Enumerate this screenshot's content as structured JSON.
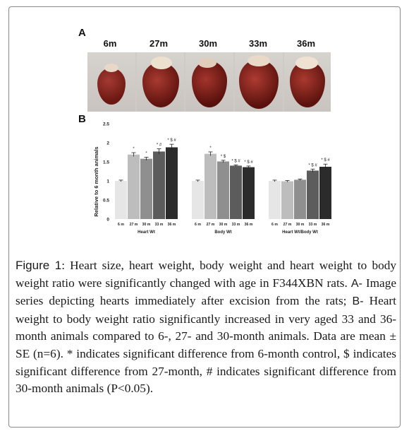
{
  "panel_a": {
    "letter": "A",
    "ages": [
      "6m",
      "27m",
      "30m",
      "33m",
      "36m"
    ]
  },
  "panel_b": {
    "letter": "B"
  },
  "chart_data": {
    "type": "bar",
    "ylabel": "Relative to 6 month animals",
    "ylim": [
      0,
      2.5
    ],
    "yticks": [
      "0",
      "0.5",
      "1",
      "1.5",
      "2",
      "2.5"
    ],
    "bar_colors": [
      "#e6e6e6",
      "#bdbdbd",
      "#8f8f8f",
      "#5c5c5c",
      "#2b2b2b"
    ],
    "groups": [
      {
        "name": "Heart Wt",
        "categories": [
          "6 m",
          "27 m",
          "30 m",
          "33 m",
          "36 m"
        ],
        "values": [
          1.0,
          1.69,
          1.58,
          1.77,
          1.88
        ],
        "errors": [
          0.02,
          0.05,
          0.04,
          0.07,
          0.08
        ],
        "annotations": [
          "",
          "*",
          "*",
          "* #",
          "* $ #"
        ]
      },
      {
        "name": "Body Wt",
        "categories": [
          "6 m",
          "27 m",
          "30 m",
          "33 m",
          "36 m"
        ],
        "values": [
          1.0,
          1.71,
          1.51,
          1.4,
          1.36
        ],
        "errors": [
          0.02,
          0.05,
          0.03,
          0.02,
          0.03
        ],
        "annotations": [
          "",
          "*",
          "* $",
          "* $ #",
          "* $ #"
        ]
      },
      {
        "name": "Heart Wt/Body Wt",
        "categories": [
          "6 m",
          "27 m",
          "30 m",
          "33 m",
          "36 m"
        ],
        "values": [
          1.0,
          0.99,
          1.03,
          1.27,
          1.37
        ],
        "errors": [
          0.02,
          0.02,
          0.02,
          0.04,
          0.07
        ],
        "annotations": [
          "",
          "",
          "",
          "* $ #",
          "* $ #"
        ]
      }
    ]
  },
  "caption": {
    "label": "Figure 1",
    "intro": ": Heart size, heart weight, body weight and heart weight to body weight ratio were significantly changed with age in F344XBN rats. ",
    "a_label": "A-",
    "a_text": " Image series depicting hearts immediately after excision from the rats; ",
    "b_label": "B-",
    "b_text": " Heart weight to body weight ratio significantly increased in very aged 33 and 36-month animals compared to 6-, 27- and 30-month animals. Data are mean ± SE (n=6). * indicates significant difference from 6-month control, $ indicates significant difference from 27-month, # indicates significant difference from 30-month animals (P<0.05)."
  }
}
